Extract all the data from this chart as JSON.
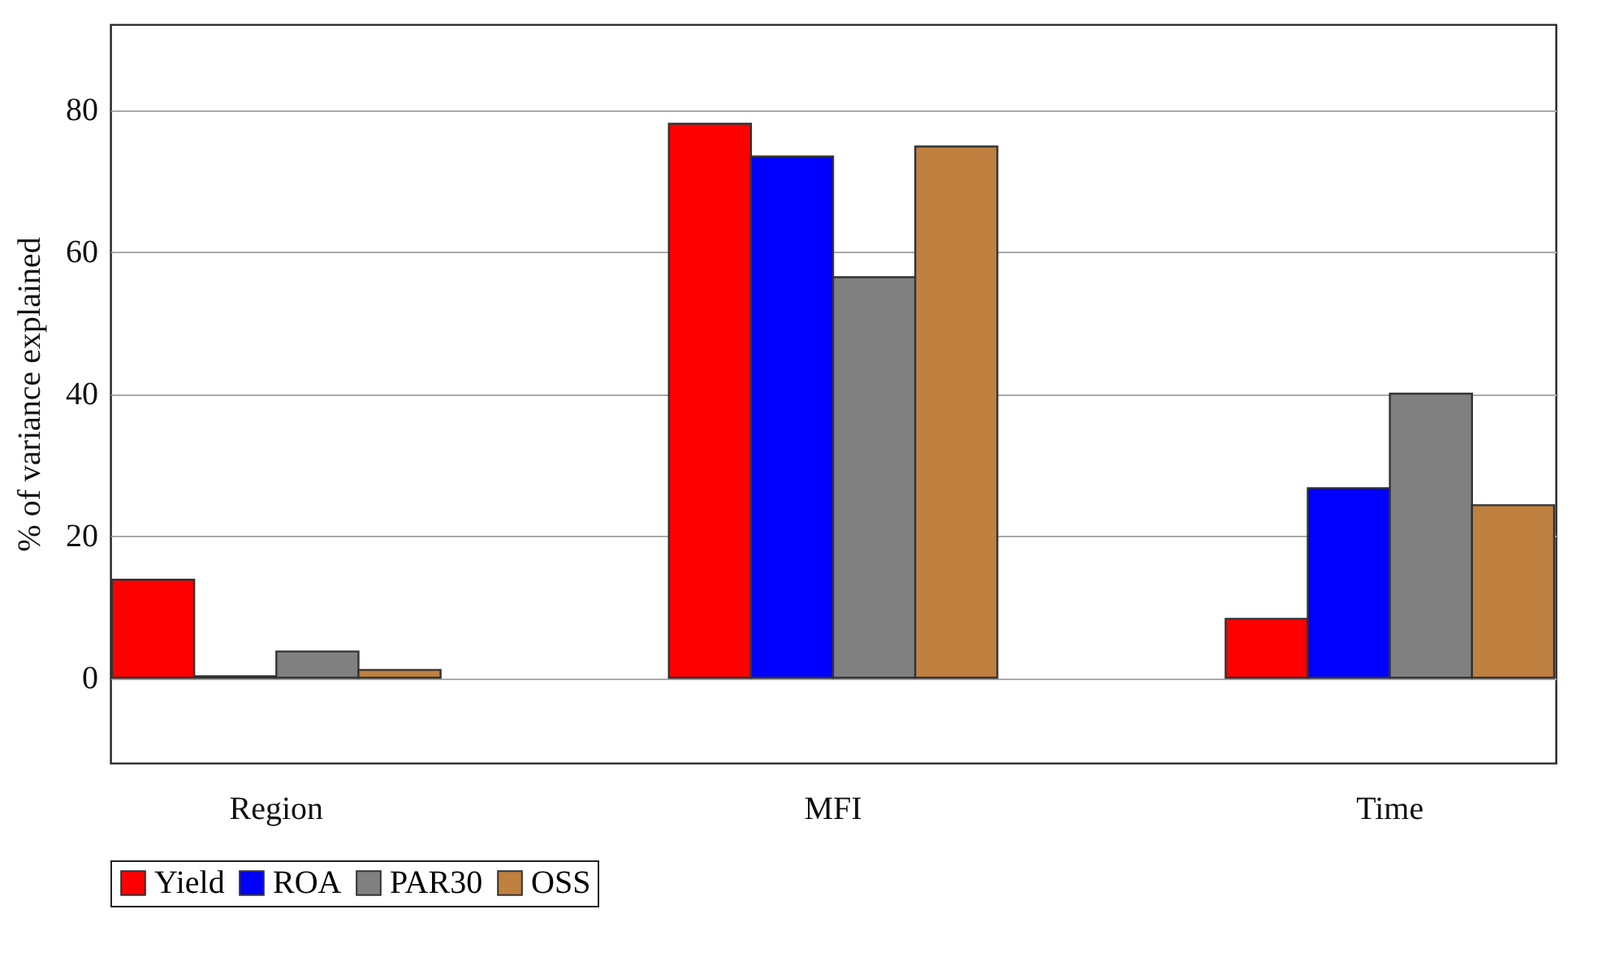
{
  "chart_data": {
    "type": "bar",
    "ylabel": "% of variance explained",
    "categories": [
      "Region",
      "MFI",
      "Time"
    ],
    "series": [
      {
        "name": "Yield",
        "color": "#ff0000",
        "values": [
          13.8,
          78.0,
          8.3
        ]
      },
      {
        "name": "ROA",
        "color": "#0000ff",
        "values": [
          0.2,
          73.4,
          26.7
        ]
      },
      {
        "name": "PAR30",
        "color": "#808080",
        "values": [
          3.7,
          56.4,
          40.0
        ]
      },
      {
        "name": "OSS",
        "color": "#bf8040",
        "values": [
          1.1,
          74.8,
          24.3
        ]
      }
    ],
    "ylim": [
      -12,
      92
    ],
    "yticks": [
      0,
      20,
      40,
      60,
      80
    ],
    "grid": "y",
    "legend": "bottom"
  }
}
